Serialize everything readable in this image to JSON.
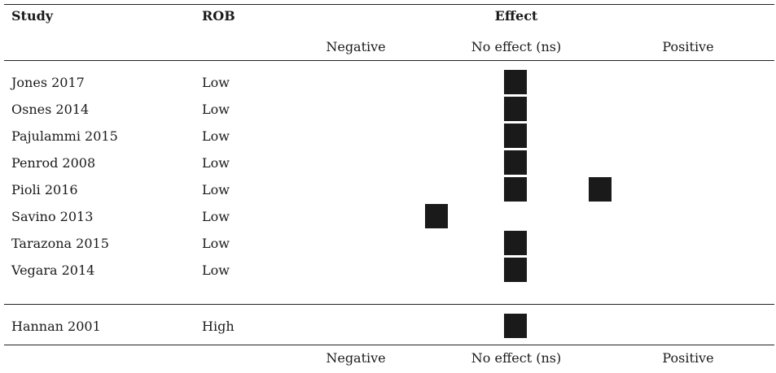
{
  "header": {
    "study": "Study",
    "rob": "ROB",
    "effect": "Effect",
    "negative": "Negative",
    "no_effect": "No effect (ns)",
    "positive": "Positive"
  },
  "footer": {
    "negative": "Negative",
    "no_effect": "No effect (ns)",
    "positive": "Positive"
  },
  "mark_color": "#1a1a1a",
  "groups": [
    {
      "rows": [
        {
          "study": "Jones 2017",
          "rob": "Low",
          "effects": [
            "no_effect"
          ]
        },
        {
          "study": "Osnes 2014",
          "rob": "Low",
          "effects": [
            "no_effect"
          ]
        },
        {
          "study": "Pajulammi 2015",
          "rob": "Low",
          "effects": [
            "no_effect"
          ]
        },
        {
          "study": "Penrod 2008",
          "rob": "Low",
          "effects": [
            "no_effect"
          ]
        },
        {
          "study": "Pioli 2016",
          "rob": "Low",
          "effects": [
            "no_effect",
            "positive"
          ]
        },
        {
          "study": "Savino 2013",
          "rob": "Low",
          "effects": [
            "negative"
          ]
        },
        {
          "study": "Tarazona 2015",
          "rob": "Low",
          "effects": [
            "no_effect"
          ]
        },
        {
          "study": "Vegara 2014",
          "rob": "Low",
          "effects": [
            "no_effect"
          ]
        }
      ]
    },
    {
      "rows": [
        {
          "study": "Hannan 2001",
          "rob": "High",
          "effects": [
            "no_effect"
          ]
        }
      ]
    }
  ]
}
